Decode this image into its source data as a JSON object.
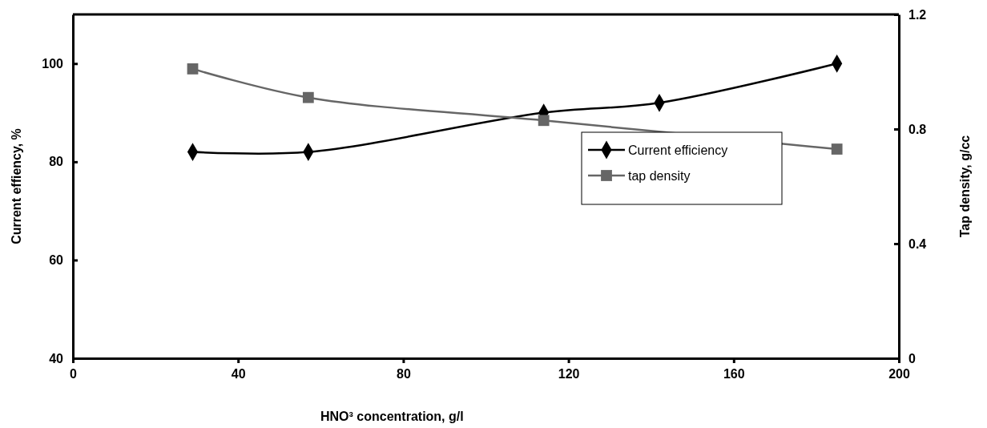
{
  "chart_data": {
    "type": "line",
    "xlabel": "HNO³ concentration, g/l",
    "ylabel": "Current effiency, %",
    "y2label": "Tap density, g/cc",
    "xlim": [
      0,
      200
    ],
    "xticks": [
      0,
      40,
      80,
      120,
      160,
      200
    ],
    "ylim": [
      40,
      110
    ],
    "yticks": [
      40,
      60,
      80,
      100
    ],
    "y2lim": [
      0,
      1.2
    ],
    "y2ticks": [
      0,
      0.4,
      0.8,
      1.2
    ],
    "legend": "right",
    "grid": false,
    "series": [
      {
        "name": "Current efficiency",
        "color": "#000000",
        "marker": "diamond",
        "x": [
          29,
          57,
          114,
          142,
          185
        ],
        "values": [
          82,
          82,
          90,
          92,
          100
        ]
      },
      {
        "name": "tap density",
        "color": "#666666",
        "marker": "square",
        "axis": "y2",
        "x": [
          29,
          57,
          114,
          185
        ],
        "values": [
          1.01,
          0.91,
          0.83,
          0.73
        ]
      }
    ]
  }
}
